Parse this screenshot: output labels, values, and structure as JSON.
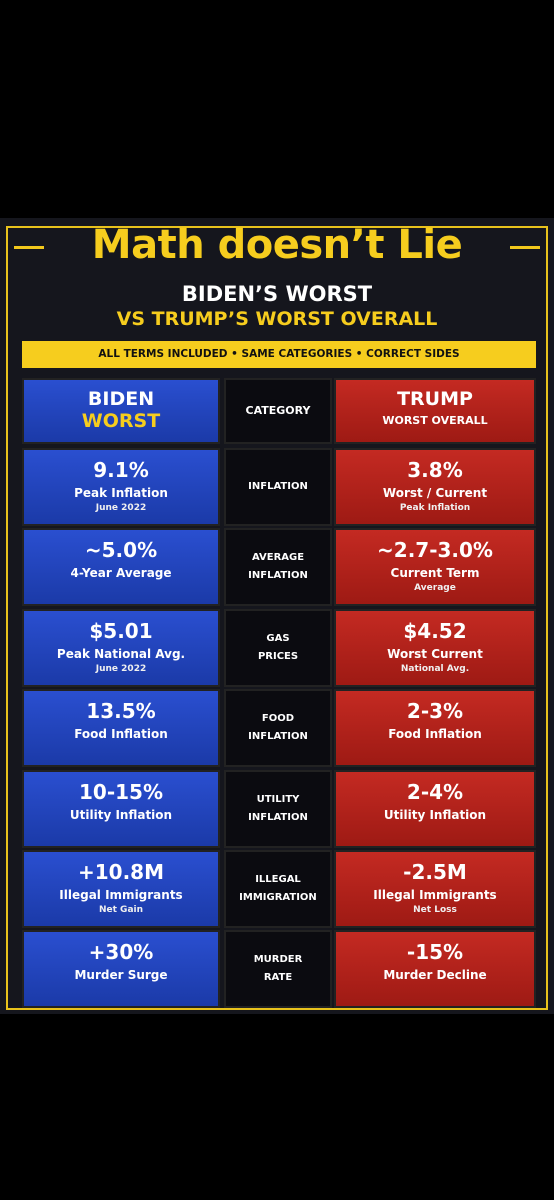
{
  "header": {
    "title": "Math doesn’t Lie",
    "subtitle_line1": "BIDEN’S WORST",
    "subtitle_line2": "VS TRUMP’S WORST OVERALL",
    "banner": "ALL TERMS INCLUDED • SAME CATEGORIES • CORRECT SIDES"
  },
  "table": {
    "columns": {
      "biden": {
        "name": "BIDEN",
        "sub": "WORST"
      },
      "category": "CATEGORY",
      "trump": {
        "name": "TRUMP",
        "sub": "WORST OVERALL"
      }
    },
    "rows": [
      {
        "category": [
          "INFLATION"
        ],
        "biden": {
          "value": "9.1%",
          "label": "Peak Inflation",
          "note": "June 2022"
        },
        "trump": {
          "value": "3.8%",
          "label": "Worst / Current",
          "note": "Peak Inflation"
        }
      },
      {
        "category": [
          "AVERAGE",
          "INFLATION"
        ],
        "biden": {
          "value": "~5.0%",
          "label": "4-Year Average"
        },
        "trump": {
          "value": "~2.7-3.0%",
          "label": "Current Term",
          "note": "Average"
        }
      },
      {
        "category": [
          "GAS",
          "PRICES"
        ],
        "biden": {
          "value": "$5.01",
          "label": "Peak National Avg.",
          "note": "June 2022"
        },
        "trump": {
          "value": "$4.52",
          "label": "Worst Current",
          "note": "National Avg."
        }
      },
      {
        "category": [
          "FOOD",
          "INFLATION"
        ],
        "biden": {
          "value": "13.5%",
          "label": "Food Inflation"
        },
        "trump": {
          "value": "2-3%",
          "label": "Food Inflation"
        }
      },
      {
        "category": [
          "UTILITY",
          "INFLATION"
        ],
        "biden": {
          "value": "10-15%",
          "label": "Utility Inflation"
        },
        "trump": {
          "value": "2-4%",
          "label": "Utility Inflation"
        }
      },
      {
        "category": [
          "ILLEGAL",
          "IMMIGRATION"
        ],
        "biden": {
          "value": "+10.8M",
          "label": "Illegal Immigrants",
          "note": "Net Gain"
        },
        "trump": {
          "value": "-2.5M",
          "label": "Illegal Immigrants",
          "note": "Net Loss"
        }
      },
      {
        "category": [
          "MURDER",
          "RATE"
        ],
        "biden": {
          "value": "+30%",
          "label": "Murder Surge"
        },
        "trump": {
          "value": "-15%",
          "label": "Murder Decline"
        }
      }
    ]
  }
}
